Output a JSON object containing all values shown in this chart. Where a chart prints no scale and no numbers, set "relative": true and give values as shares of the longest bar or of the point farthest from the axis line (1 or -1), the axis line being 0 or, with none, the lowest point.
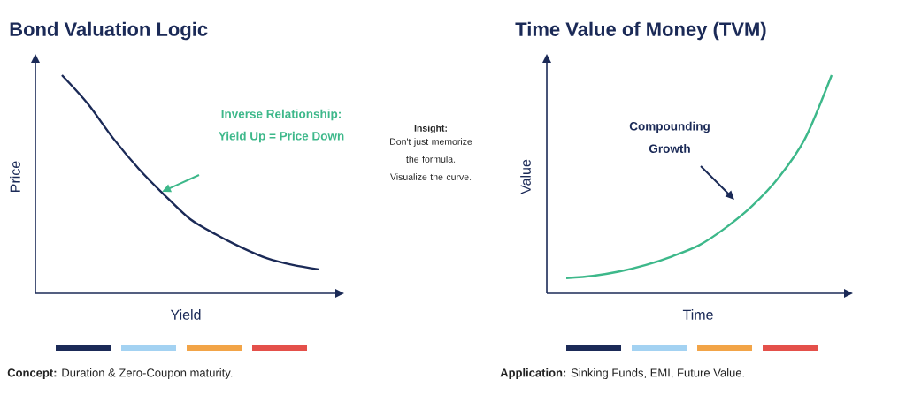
{
  "chart_data": [
    {
      "type": "line",
      "relative": true,
      "title": "Bond Valuation Logic",
      "xlabel": "Yield",
      "ylabel": "Price",
      "color": "#1b2a57",
      "categories": [
        null,
        null,
        null,
        null,
        null,
        null,
        null,
        null,
        null,
        null,
        null
      ],
      "values": [
        1,
        0.87,
        0.71,
        0.57,
        0.45,
        0.34,
        0.27,
        0.21,
        0.16,
        0.13,
        0.11
      ],
      "annotations": [
        "Inverse Relationship:",
        "Yield Up = Price Down",
        "Insight:",
        "Don't just memorize the formula. Visualize the curve.",
        "**Concept:** Duration & Zero-Coupon maturity."
      ]
    },
    {
      "type": "line",
      "relative": true,
      "title": "Time Value of Money (TVM)",
      "xlabel": "Time",
      "ylabel": "Value",
      "color": "#3db88a",
      "categories": [
        null,
        null,
        null,
        null,
        null,
        null,
        null,
        null,
        null,
        null,
        null
      ],
      "values": [
        0.07,
        0.08,
        0.1,
        0.13,
        0.17,
        0.22,
        0.3,
        0.4,
        0.53,
        0.71,
        1
      ],
      "annotations": [
        "Compounding",
        "Growth",
        "**Application:** Sinking Funds, EMI, Future Value."
      ]
    }
  ]
}
